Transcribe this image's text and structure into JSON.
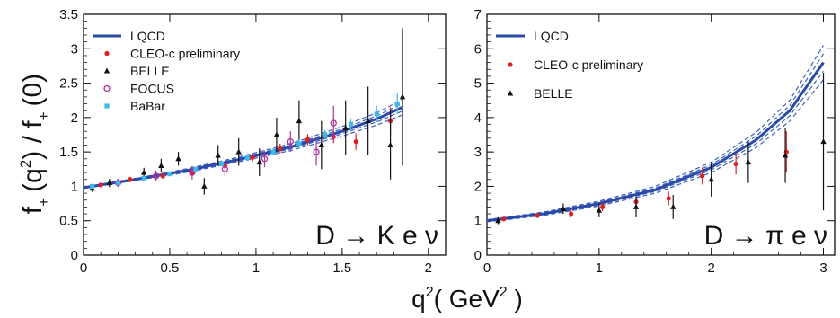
{
  "figure": {
    "ylabel_parts": [
      "f",
      "+",
      "(q",
      "2",
      ") / f",
      "+",
      "(0)"
    ],
    "xlabel_parts": [
      "q",
      "2",
      "( GeV",
      "2",
      " )"
    ]
  },
  "chart_data": [
    {
      "type": "scatter",
      "panel": "left",
      "annotation": "D → K e ν",
      "xlim": [
        0,
        2.1
      ],
      "ylim": [
        0,
        3.5
      ],
      "xticks": [
        0,
        0.5,
        1,
        1.5,
        2
      ],
      "xticklabels": [
        "0",
        "0.5",
        "1",
        "1.5",
        "2"
      ],
      "yticks": [
        0,
        0.5,
        1,
        1.5,
        2,
        2.5,
        3,
        3.5
      ],
      "yticklabels": [
        "0",
        "0.5",
        "1",
        "1.5",
        "2",
        "2.5",
        "3",
        "3.5"
      ],
      "legend_position": "top-left",
      "legend": [
        {
          "label": "LQCD",
          "marker": "line",
          "color": "#2b4aa8"
        },
        {
          "label": "CLEO-c preliminary",
          "marker": "dot",
          "color": "#e02020"
        },
        {
          "label": "BELLE",
          "marker": "triangle",
          "color": "#111111"
        },
        {
          "label": "FOCUS",
          "marker": "circle",
          "color": "#b0309a"
        },
        {
          "label": "BaBar",
          "marker": "square",
          "color": "#3fb8e8"
        }
      ],
      "curve": {
        "name": "LQCD",
        "x": [
          0,
          0.3,
          0.6,
          0.9,
          1.2,
          1.5,
          1.7,
          1.85
        ],
        "y": [
          0.98,
          1.1,
          1.23,
          1.39,
          1.57,
          1.8,
          1.98,
          2.15
        ],
        "band": [
          0.01,
          0.015,
          0.025,
          0.035,
          0.05,
          0.07,
          0.09,
          0.11
        ]
      },
      "series": [
        {
          "name": "CLEO-c preliminary",
          "points": [
            [
              0.1,
              1.02,
              0.03
            ],
            [
              0.27,
              1.1,
              0.04
            ],
            [
              0.46,
              1.15,
              0.04
            ],
            [
              0.63,
              1.2,
              0.05
            ],
            [
              0.82,
              1.3,
              0.05
            ],
            [
              0.98,
              1.42,
              0.06
            ],
            [
              1.14,
              1.55,
              0.07
            ],
            [
              1.3,
              1.68,
              0.08
            ],
            [
              1.45,
              1.72,
              0.09
            ],
            [
              1.58,
              1.65,
              0.12
            ],
            [
              1.78,
              1.95,
              0.2
            ]
          ]
        },
        {
          "name": "BELLE",
          "points": [
            [
              0.05,
              0.97,
              0.05
            ],
            [
              0.15,
              1.05,
              0.06
            ],
            [
              0.35,
              1.2,
              0.07
            ],
            [
              0.45,
              1.3,
              0.1
            ],
            [
              0.55,
              1.4,
              0.1
            ],
            [
              0.7,
              1.0,
              0.12
            ],
            [
              0.78,
              1.45,
              0.15
            ],
            [
              0.9,
              1.5,
              0.2
            ],
            [
              1.02,
              1.35,
              0.2
            ],
            [
              1.12,
              1.75,
              0.25
            ],
            [
              1.25,
              1.95,
              0.3
            ],
            [
              1.38,
              1.6,
              0.35
            ],
            [
              1.52,
              1.85,
              0.4
            ],
            [
              1.65,
              1.95,
              0.5
            ],
            [
              1.78,
              1.6,
              0.5
            ],
            [
              1.85,
              2.3,
              1.0
            ]
          ]
        },
        {
          "name": "FOCUS",
          "points": [
            [
              0.2,
              1.05,
              0.06
            ],
            [
              0.42,
              1.15,
              0.08
            ],
            [
              0.63,
              1.2,
              0.1
            ],
            [
              0.82,
              1.25,
              0.1
            ],
            [
              1.05,
              1.4,
              0.12
            ],
            [
              1.2,
              1.65,
              0.15
            ],
            [
              1.35,
              1.5,
              0.2
            ],
            [
              1.45,
              1.92,
              0.25
            ]
          ]
        },
        {
          "name": "BaBar",
          "points": [
            [
              0.05,
              1.0,
              0.02
            ],
            [
              0.2,
              1.05,
              0.02
            ],
            [
              0.35,
              1.12,
              0.03
            ],
            [
              0.5,
              1.18,
              0.03
            ],
            [
              0.65,
              1.25,
              0.03
            ],
            [
              0.8,
              1.33,
              0.04
            ],
            [
              0.95,
              1.42,
              0.05
            ],
            [
              1.1,
              1.5,
              0.05
            ],
            [
              1.25,
              1.62,
              0.06
            ],
            [
              1.4,
              1.75,
              0.07
            ],
            [
              1.55,
              1.9,
              0.09
            ],
            [
              1.7,
              2.05,
              0.12
            ],
            [
              1.82,
              2.2,
              0.15
            ]
          ]
        }
      ]
    },
    {
      "type": "scatter",
      "panel": "right",
      "annotation": "D → π e ν",
      "xlim": [
        0,
        3.1
      ],
      "ylim": [
        0,
        7
      ],
      "xticks": [
        0,
        1,
        2,
        3
      ],
      "xticklabels": [
        "0",
        "1",
        "2",
        "3"
      ],
      "yticks": [
        0,
        1,
        2,
        3,
        4,
        5,
        6,
        7
      ],
      "yticklabels": [
        "0",
        "1",
        "2",
        "3",
        "4",
        "5",
        "6",
        "7"
      ],
      "legend_position": "top-left",
      "legend": [
        {
          "label": "LQCD",
          "marker": "line",
          "color": "#2b4aa8"
        },
        {
          "label": "CLEO-c preliminary",
          "marker": "dot",
          "color": "#e02020"
        },
        {
          "label": "BELLE",
          "marker": "triangle",
          "color": "#111111"
        }
      ],
      "curve": {
        "name": "LQCD",
        "x": [
          0,
          0.5,
          1.0,
          1.5,
          2.0,
          2.4,
          2.7,
          3.0
        ],
        "y": [
          1.0,
          1.2,
          1.5,
          1.9,
          2.55,
          3.35,
          4.2,
          5.6
        ],
        "band": [
          0.03,
          0.05,
          0.07,
          0.1,
          0.15,
          0.22,
          0.3,
          0.5
        ]
      },
      "series": [
        {
          "name": "CLEO-c preliminary",
          "points": [
            [
              0.15,
              1.05,
              0.05
            ],
            [
              0.45,
              1.15,
              0.07
            ],
            [
              0.75,
              1.2,
              0.1
            ],
            [
              1.03,
              1.4,
              0.12
            ],
            [
              1.33,
              1.55,
              0.15
            ],
            [
              1.62,
              1.65,
              0.2
            ],
            [
              1.92,
              2.3,
              0.25
            ],
            [
              2.22,
              2.65,
              0.3
            ],
            [
              2.67,
              3.0,
              0.6
            ]
          ]
        },
        {
          "name": "BELLE",
          "points": [
            [
              0.1,
              1.0,
              0.1
            ],
            [
              0.68,
              1.35,
              0.15
            ],
            [
              1.0,
              1.3,
              0.2
            ],
            [
              1.33,
              1.4,
              0.3
            ],
            [
              1.66,
              1.4,
              0.35
            ],
            [
              2.0,
              2.2,
              0.5
            ],
            [
              2.33,
              2.7,
              0.6
            ],
            [
              2.66,
              2.9,
              0.8
            ],
            [
              3.0,
              3.3,
              2.0
            ]
          ]
        }
      ]
    }
  ]
}
